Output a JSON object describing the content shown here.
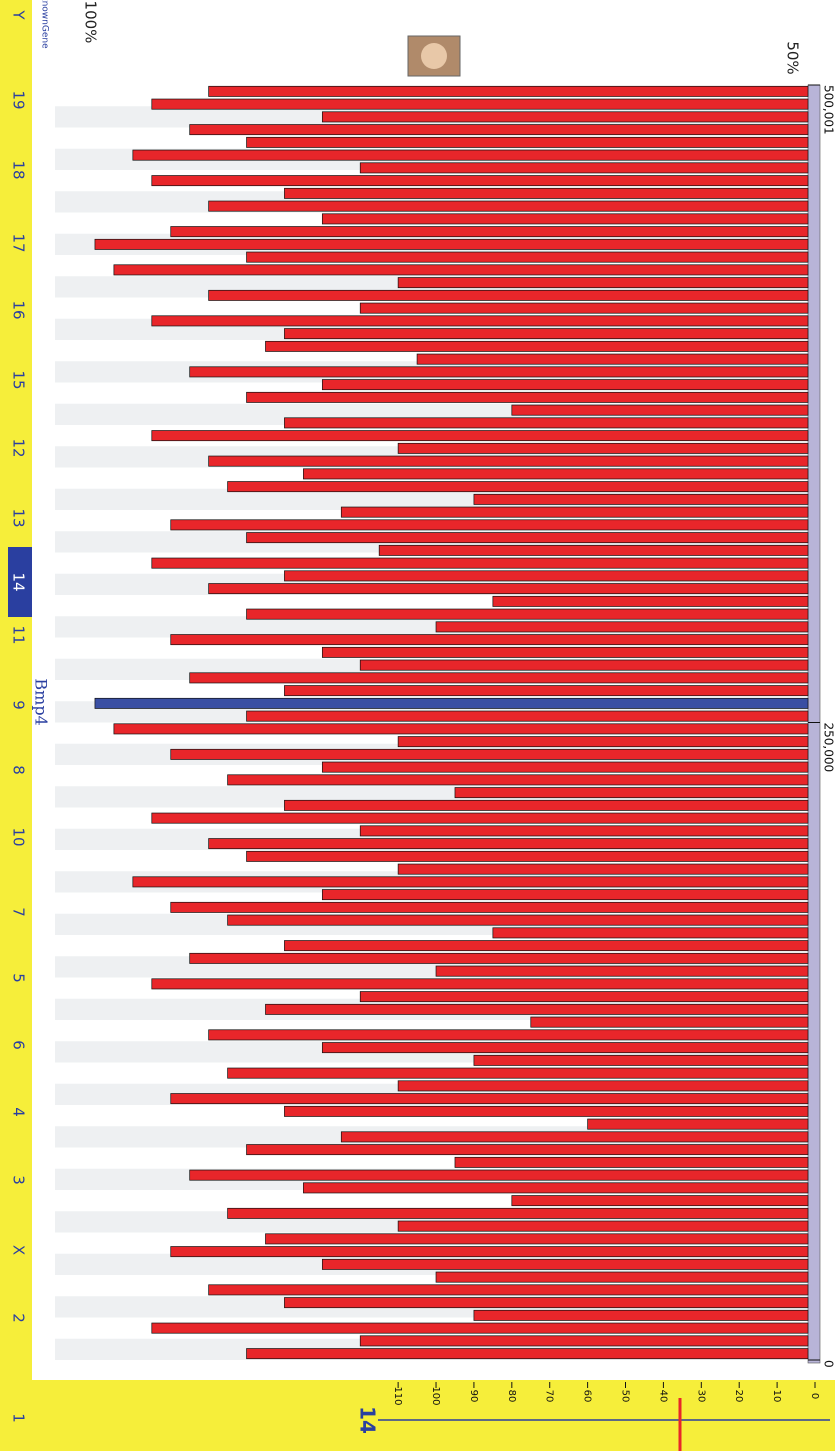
{
  "track_label": "knownGene",
  "scale_top_label": "100%",
  "scale_mid_label": "50%",
  "current_chromosome": "14",
  "chromosomes": [
    "Y",
    "19",
    "18",
    "17",
    "16",
    "15",
    "12",
    "13",
    "14",
    "11",
    "9",
    "8",
    "10",
    "7",
    "5",
    "6",
    "4",
    "3",
    "X",
    "2",
    "1"
  ],
  "gene": {
    "label": "Bmp4",
    "position": 258000
  },
  "chart_data": {
    "type": "bar",
    "orientation": "horizontal",
    "color": "#e8262a",
    "highlight_color": "#3a4fa3",
    "x": [
      2500,
      7500,
      12500,
      17500,
      22500,
      27500,
      32500,
      37500,
      42500,
      47500,
      52500,
      57500,
      62500,
      67500,
      72500,
      77500,
      82500,
      87500,
      92500,
      97500,
      102500,
      107500,
      112500,
      117500,
      122500,
      127500,
      132500,
      137500,
      142500,
      147500,
      152500,
      157500,
      162500,
      167500,
      172500,
      177500,
      182500,
      187500,
      192500,
      197500,
      202500,
      207500,
      212500,
      217500,
      222500,
      227500,
      232500,
      237500,
      242500,
      247500,
      252500,
      257500,
      262500,
      267500,
      272500,
      277500,
      282500,
      287500,
      292500,
      297500,
      302500,
      307500,
      312500,
      317500,
      322500,
      327500,
      332500,
      337500,
      342500,
      347500,
      352500,
      357500,
      362500,
      367500,
      372500,
      377500,
      382500,
      387500,
      392500,
      397500,
      402500,
      407500,
      412500,
      417500,
      422500,
      427500,
      432500,
      437500,
      442500,
      447500,
      452500,
      457500,
      462500,
      467500,
      472500,
      477500,
      482500,
      487500,
      492500,
      497500
    ],
    "values": [
      150,
      120,
      175,
      90,
      140,
      160,
      100,
      130,
      170,
      145,
      110,
      155,
      80,
      135,
      165,
      95,
      150,
      125,
      60,
      140,
      170,
      110,
      155,
      90,
      130,
      160,
      75,
      145,
      120,
      175,
      100,
      165,
      140,
      85,
      155,
      170,
      130,
      180,
      110,
      150,
      160,
      120,
      175,
      140,
      95,
      155,
      130,
      170,
      110,
      185,
      150,
      190,
      140,
      165,
      120,
      130,
      170,
      100,
      150,
      85,
      160,
      140,
      175,
      115,
      150,
      170,
      125,
      90,
      155,
      135,
      160,
      110,
      175,
      140,
      80,
      150,
      130,
      165,
      105,
      145,
      140,
      175,
      120,
      160,
      110,
      185,
      150,
      190,
      170,
      130,
      160,
      140,
      175,
      120,
      180,
      150,
      165,
      130,
      175,
      160
    ],
    "xlim": [
      0,
      500001
    ],
    "xticks": [
      0,
      {
        "value": 250000,
        "label": "250,000"
      },
      {
        "value": 500001,
        "label": "500,001"
      }
    ],
    "ylim": [
      0,
      195
    ],
    "yticks": [
      0,
      10,
      20,
      30,
      40,
      50,
      60,
      70,
      80,
      90,
      100,
      110
    ]
  }
}
